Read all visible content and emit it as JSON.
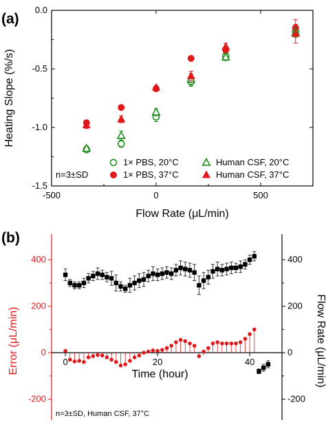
{
  "chart_data": [
    {
      "panel": "(a)",
      "type": "scatter",
      "xlabel": "Flow Rate (μL/min)",
      "ylabel": "Heating Slope (%/s)",
      "xlim": [
        -500,
        750
      ],
      "ylim": [
        -1.5,
        0.0
      ],
      "x_ticks": [
        "-500",
        "0",
        "500"
      ],
      "y_ticks": [
        "0.0",
        "-0.5",
        "-1.0",
        "-1.5"
      ],
      "annotation": "n=3±SD",
      "legend_position": "bottom-right",
      "series": [
        {
          "name": "1× PBS, 20°C",
          "marker": "open-circle",
          "color": "#1a8a1a",
          "x": [
            -333,
            -167,
            0,
            167,
            333,
            667
          ],
          "y": [
            -1.19,
            -1.14,
            -0.91,
            -0.61,
            -0.39,
            -0.18
          ],
          "err": [
            0.02,
            0.03,
            0.04,
            0.04,
            0.03,
            0.03
          ]
        },
        {
          "name": "1× PBS, 37°C",
          "marker": "filled-circle",
          "color": "#e0191b",
          "x": [
            -333,
            -167,
            0,
            167,
            333,
            667
          ],
          "y": [
            -0.96,
            -0.83,
            -0.67,
            -0.41,
            -0.34,
            -0.15
          ],
          "err": [
            0.02,
            0.02,
            0.02,
            0.01,
            0.03,
            0.07
          ]
        },
        {
          "name": "Human CSF, 20°C",
          "marker": "open-triangle",
          "color": "#1a8a1a",
          "x": [
            -333,
            -167,
            0,
            167,
            333,
            667
          ],
          "y": [
            -1.18,
            -1.07,
            -0.87,
            -0.59,
            -0.4,
            -0.19
          ],
          "err": [
            0.02,
            0.04,
            0.03,
            0.05,
            0.03,
            0.04
          ]
        },
        {
          "name": "Human CSF, 37°C",
          "marker": "filled-triangle",
          "color": "#e0191b",
          "x": [
            -333,
            -167,
            0,
            167,
            333,
            667
          ],
          "y": [
            -0.98,
            -0.93,
            -0.66,
            -0.56,
            -0.31,
            -0.2
          ],
          "err": [
            0.03,
            0.03,
            0.02,
            0.04,
            0.03,
            0.08
          ]
        }
      ]
    },
    {
      "panel": "(b)",
      "type": "scatter",
      "xlabel": "Time (hour)",
      "ylabel_left": "Error (μL/min)",
      "ylabel_right": "Flow Rate (μL/min)",
      "xlim": [
        -3,
        47
      ],
      "ylim": [
        -290,
        510
      ],
      "x_ticks": [
        "0",
        "20",
        "40"
      ],
      "y_ticks_left": [
        "400",
        "200",
        "0",
        "-200"
      ],
      "y_ticks_right": [
        "400",
        "200",
        "0",
        "-200"
      ],
      "annotation": "n=3±SD, Human CSF, 37°C",
      "series": [
        {
          "name_hidden": "flow",
          "marker": "filled-square",
          "color": "#000000",
          "x": [
            0,
            1,
            2,
            3,
            4,
            5,
            6,
            7,
            8,
            9,
            10,
            11,
            12,
            13,
            14,
            15,
            16,
            17,
            18,
            19,
            20,
            21,
            22,
            23,
            24,
            25,
            26,
            27,
            28,
            29,
            30,
            31,
            32,
            33,
            34,
            35,
            36,
            37,
            38,
            39,
            40,
            41,
            42,
            43,
            44
          ],
          "y": [
            335,
            300,
            290,
            290,
            300,
            320,
            330,
            340,
            335,
            325,
            320,
            300,
            285,
            275,
            290,
            300,
            310,
            315,
            330,
            340,
            335,
            340,
            345,
            340,
            355,
            365,
            360,
            355,
            345,
            290,
            310,
            325,
            350,
            360,
            355,
            360,
            365,
            365,
            370,
            380,
            400,
            415,
            -80,
            -65,
            -50
          ],
          "err": [
            25,
            15,
            15,
            15,
            20,
            20,
            20,
            25,
            20,
            20,
            30,
            35,
            20,
            15,
            30,
            30,
            30,
            30,
            25,
            30,
            25,
            25,
            25,
            25,
            25,
            30,
            30,
            30,
            35,
            40,
            35,
            30,
            30,
            30,
            25,
            25,
            25,
            20,
            25,
            20,
            20,
            20,
            10,
            15,
            15
          ]
        },
        {
          "name_hidden": "error",
          "marker": "filled-circle-stem",
          "color": "#e0191b",
          "x": [
            0,
            1,
            2,
            3,
            4,
            5,
            6,
            7,
            8,
            9,
            10,
            11,
            12,
            13,
            14,
            15,
            16,
            17,
            18,
            19,
            20,
            21,
            22,
            23,
            24,
            25,
            26,
            27,
            28,
            29,
            30,
            31,
            32,
            33,
            34,
            35,
            36,
            37,
            38,
            39,
            40,
            41
          ],
          "y": [
            8,
            -30,
            -38,
            -35,
            -40,
            -20,
            -15,
            -10,
            -12,
            -20,
            -30,
            -40,
            -55,
            -50,
            -35,
            -20,
            -12,
            0,
            5,
            10,
            8,
            12,
            20,
            30,
            45,
            55,
            50,
            40,
            30,
            -15,
            5,
            20,
            40,
            45,
            40,
            40,
            40,
            40,
            45,
            60,
            80,
            100
          ]
        }
      ]
    }
  ]
}
